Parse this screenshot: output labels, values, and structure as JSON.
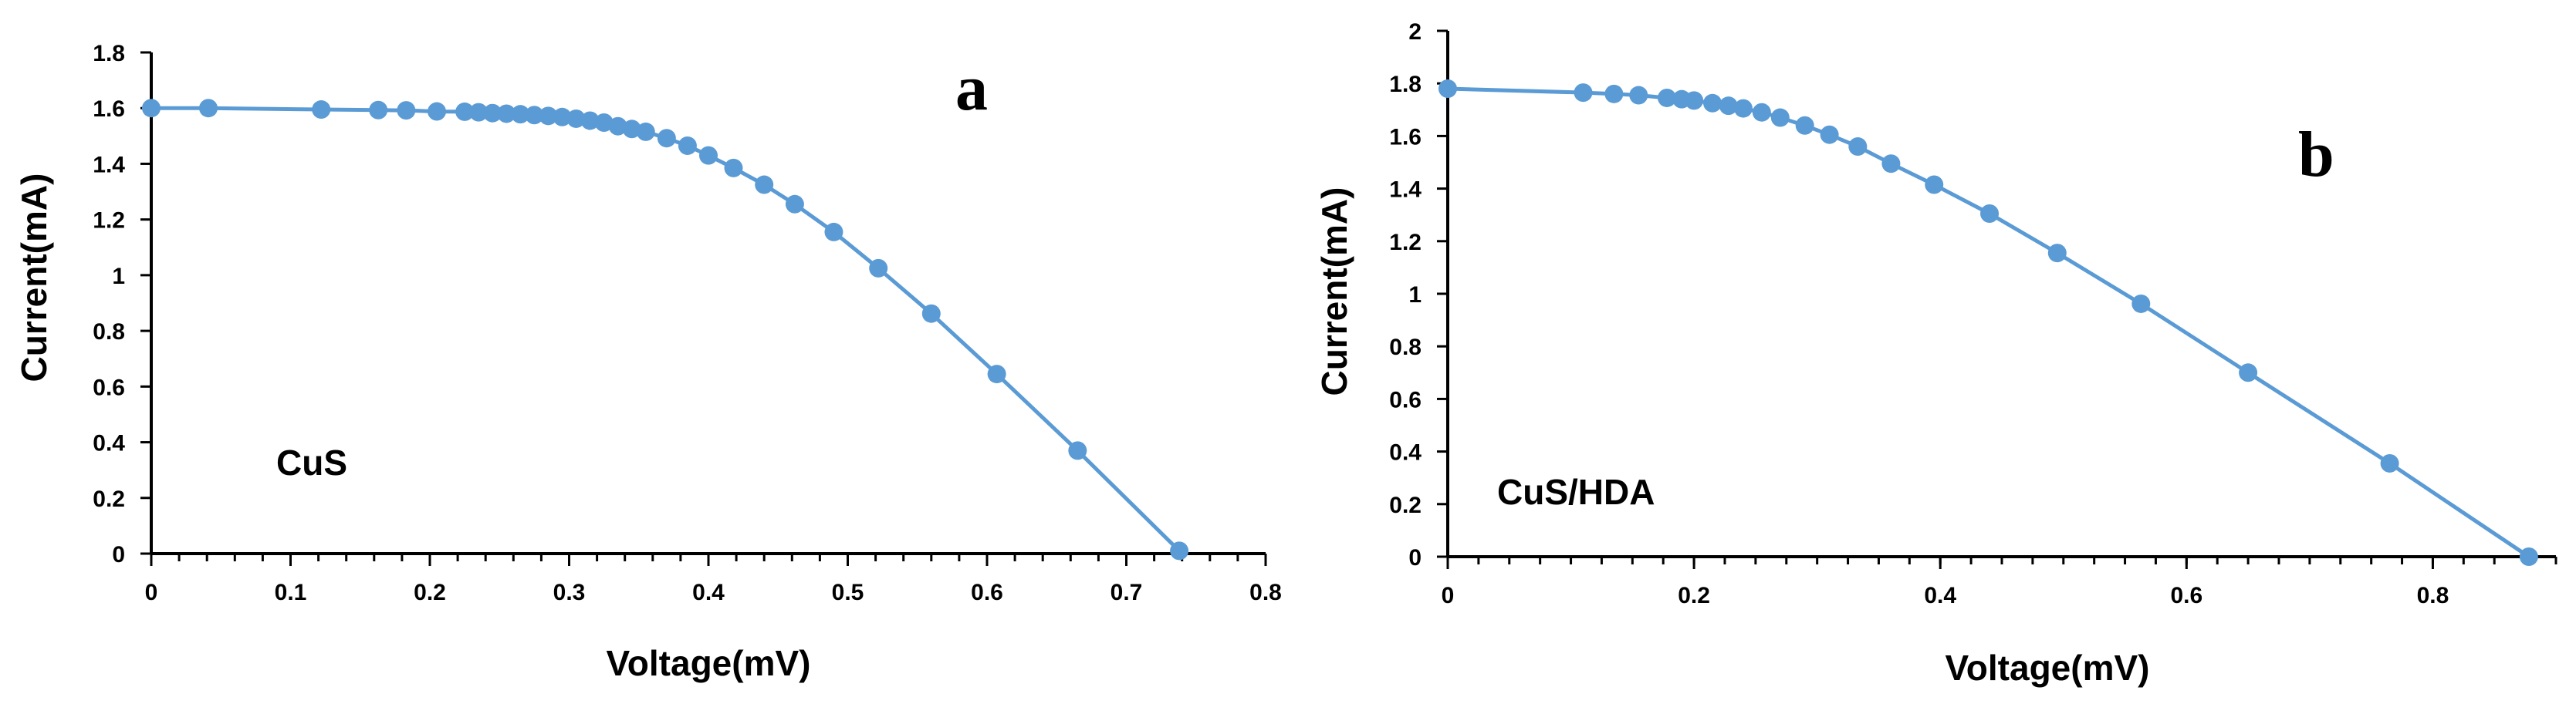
{
  "chart_data": [
    {
      "type": "scatter",
      "panel_label": "a",
      "sample_label": "CuS",
      "xlabel": "Voltage(mV)",
      "ylabel": "Current(mA)",
      "xlim": [
        0,
        0.8
      ],
      "ylim": [
        0,
        1.8
      ],
      "x_ticks": [
        "0",
        "0.1",
        "0.2",
        "0.3",
        "0.4",
        "0.5",
        "0.6",
        "0.7",
        "0.8"
      ],
      "y_ticks": [
        "0",
        "0.2",
        "0.4",
        "0.6",
        "0.8",
        "1",
        "1.2",
        "1.4",
        "1.6",
        "1.8"
      ],
      "color": "#5b9bd5",
      "series": [
        {
          "name": "CuS",
          "x": [
            0,
            0.041,
            0.122,
            0.163,
            0.183,
            0.205,
            0.225,
            0.235,
            0.245,
            0.255,
            0.265,
            0.275,
            0.285,
            0.295,
            0.305,
            0.315,
            0.325,
            0.335,
            0.345,
            0.355,
            0.37,
            0.385,
            0.4,
            0.418,
            0.44,
            0.462,
            0.49,
            0.522,
            0.56,
            0.607,
            0.665,
            0.738
          ],
          "y": [
            1.6,
            1.6,
            1.595,
            1.593,
            1.592,
            1.588,
            1.587,
            1.585,
            1.582,
            1.58,
            1.578,
            1.575,
            1.572,
            1.568,
            1.562,
            1.555,
            1.548,
            1.535,
            1.525,
            1.515,
            1.492,
            1.465,
            1.43,
            1.385,
            1.325,
            1.255,
            1.155,
            1.025,
            0.862,
            0.645,
            0.37,
            0.01
          ]
        }
      ]
    },
    {
      "type": "scatter",
      "panel_label": "b",
      "sample_label": "CuS/HDA",
      "xlabel": "Voltage(mV)",
      "ylabel": "Current(mA)",
      "xlim": [
        0,
        0.9
      ],
      "ylim": [
        0,
        2
      ],
      "x_ticks": [
        "0",
        "0.2",
        "0.4",
        "0.6",
        "0.8"
      ],
      "x_tick_values": [
        0,
        0.2,
        0.4,
        0.6,
        0.8
      ],
      "y_ticks": [
        "0",
        "0.2",
        "0.4",
        "0.6",
        "0.8",
        "1",
        "1.2",
        "1.4",
        "1.6",
        "1.8",
        "2"
      ],
      "color": "#5b9bd5",
      "series": [
        {
          "name": "CuS/HDA",
          "x": [
            0,
            0.11,
            0.135,
            0.155,
            0.178,
            0.19,
            0.2,
            0.215,
            0.228,
            0.24,
            0.255,
            0.27,
            0.29,
            0.31,
            0.333,
            0.36,
            0.395,
            0.44,
            0.495,
            0.563,
            0.65,
            0.765,
            0.878
          ],
          "y": [
            1.78,
            1.765,
            1.76,
            1.755,
            1.745,
            1.74,
            1.735,
            1.725,
            1.715,
            1.705,
            1.69,
            1.67,
            1.64,
            1.605,
            1.56,
            1.495,
            1.415,
            1.305,
            1.155,
            0.962,
            0.7,
            0.355,
            0
          ]
        }
      ]
    }
  ]
}
